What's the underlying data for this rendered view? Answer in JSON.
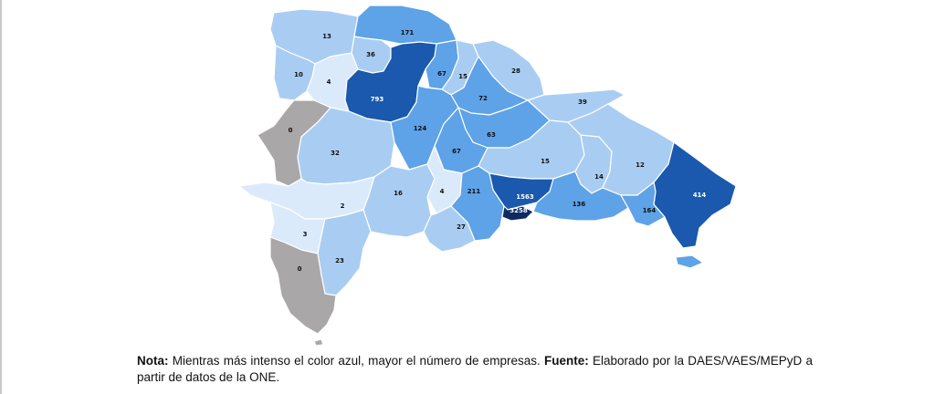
{
  "colors": {
    "very_light": "#dbeafb",
    "light": "#a9cdf2",
    "medium": "#5ea2e8",
    "dark": "#1a59ad",
    "darkest": "#0d2b63",
    "no_data": "#a9a7a8"
  },
  "provinces": [
    {
      "id": "p-13",
      "value": "13"
    },
    {
      "id": "p-171",
      "value": "171"
    },
    {
      "id": "p-36",
      "value": "36"
    },
    {
      "id": "p-10",
      "value": "10"
    },
    {
      "id": "p-4n",
      "value": "4"
    },
    {
      "id": "p-793",
      "value": "793"
    },
    {
      "id": "p-67n",
      "value": "67"
    },
    {
      "id": "p-15n",
      "value": "15"
    },
    {
      "id": "p-28",
      "value": "28"
    },
    {
      "id": "p-72",
      "value": "72"
    },
    {
      "id": "p-39",
      "value": "39"
    },
    {
      "id": "p-0n",
      "value": "0"
    },
    {
      "id": "p-32",
      "value": "32"
    },
    {
      "id": "p-124",
      "value": "124"
    },
    {
      "id": "p-63",
      "value": "63"
    },
    {
      "id": "p-67s",
      "value": "67"
    },
    {
      "id": "p-15s",
      "value": "15"
    },
    {
      "id": "p-14",
      "value": "14"
    },
    {
      "id": "p-12",
      "value": "12"
    },
    {
      "id": "p-414",
      "value": "414"
    },
    {
      "id": "p-2",
      "value": "2"
    },
    {
      "id": "p-16",
      "value": "16"
    },
    {
      "id": "p-4s",
      "value": "4"
    },
    {
      "id": "p-211",
      "value": "211"
    },
    {
      "id": "p-1563",
      "value": "1563"
    },
    {
      "id": "p-3258",
      "value": "3258"
    },
    {
      "id": "p-136",
      "value": "136"
    },
    {
      "id": "p-164",
      "value": "164"
    },
    {
      "id": "p-3",
      "value": "3"
    },
    {
      "id": "p-27",
      "value": "27"
    },
    {
      "id": "p-23",
      "value": "23"
    },
    {
      "id": "p-0s",
      "value": "0"
    }
  ],
  "note": {
    "label": "Nota:",
    "text": " Mientras más intenso el color azul, mayor el número de empresas. ",
    "source_label": "Fuente:",
    "source_text": " Elaborado por la DAES/VAES/MEPyD a partir de datos de la ONE."
  }
}
